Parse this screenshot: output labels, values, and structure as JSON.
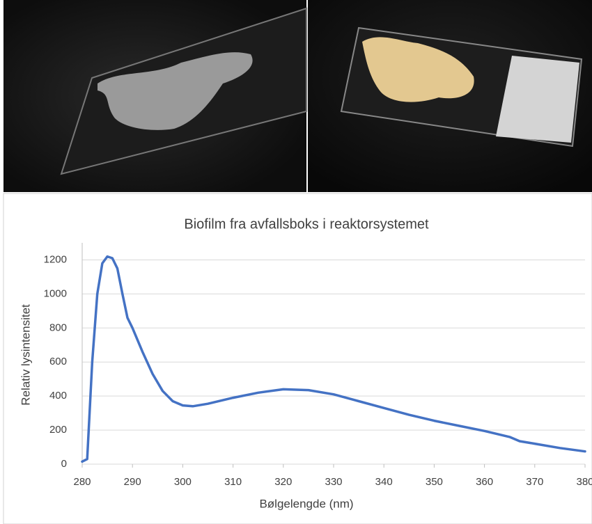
{
  "chart_data": {
    "type": "line",
    "title": "Biofilm fra avfallsboks i reaktorsystemet",
    "x_label": "Bølgelengde (nm)",
    "y_label": "Relativ lysintensitet",
    "x": [
      280,
      281,
      282,
      283,
      284,
      285,
      286,
      287,
      288,
      289,
      290,
      292,
      294,
      296,
      298,
      300,
      302,
      305,
      310,
      315,
      320,
      325,
      330,
      335,
      340,
      345,
      350,
      355,
      360,
      365,
      367,
      370,
      375,
      380
    ],
    "values": [
      15,
      30,
      600,
      1000,
      1180,
      1220,
      1210,
      1150,
      1000,
      860,
      800,
      660,
      530,
      430,
      370,
      345,
      340,
      355,
      390,
      420,
      440,
      435,
      410,
      370,
      330,
      290,
      255,
      225,
      195,
      160,
      135,
      120,
      95,
      75
    ],
    "color": "#4472c4",
    "xlim": [
      280,
      380
    ],
    "xticks": [
      280,
      290,
      300,
      310,
      320,
      330,
      340,
      350,
      360,
      370,
      380
    ],
    "ylim": [
      0,
      1300
    ],
    "yticks": [
      0,
      200,
      400,
      600,
      800,
      1000,
      1200
    ],
    "grid": true
  }
}
